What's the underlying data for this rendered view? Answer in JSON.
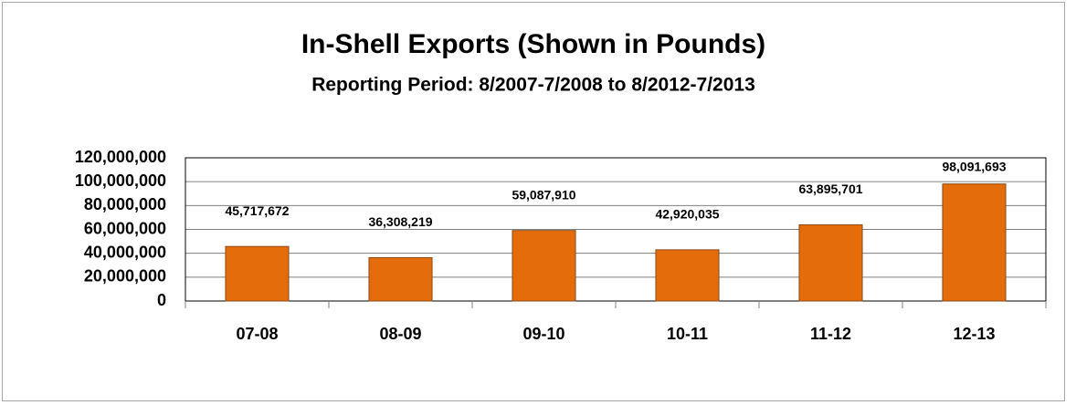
{
  "chart_data": {
    "type": "bar",
    "title": "In-Shell Exports (Shown in Pounds)",
    "subtitle": "Reporting Period:  8/2007-7/2008 to 8/2012-7/2013",
    "categories": [
      "07-08",
      "08-09",
      "09-10",
      "10-11",
      "11-12",
      "12-13"
    ],
    "values": [
      45717672,
      36308219,
      59087910,
      42920035,
      63895701,
      98091693
    ],
    "value_labels": [
      "45,717,672",
      "36,308,219",
      "59,087,910",
      "42,920,035",
      "63,895,701",
      "98,091,693"
    ],
    "color": "#e46c0a",
    "ylim": [
      0,
      120000000
    ],
    "yticks": [
      0,
      {
        "value": 20000000,
        "label": "20,000,000"
      },
      {
        "value": 40000000,
        "label": "40,000,000"
      },
      {
        "value": 60000000,
        "label": "60,000,000"
      },
      {
        "value": 80000000,
        "label": "80,000,000"
      },
      {
        "value": 100000000,
        "label": "100,000,000"
      },
      {
        "value": 120000000,
        "label": "120,000,000"
      }
    ],
    "grid": true
  }
}
